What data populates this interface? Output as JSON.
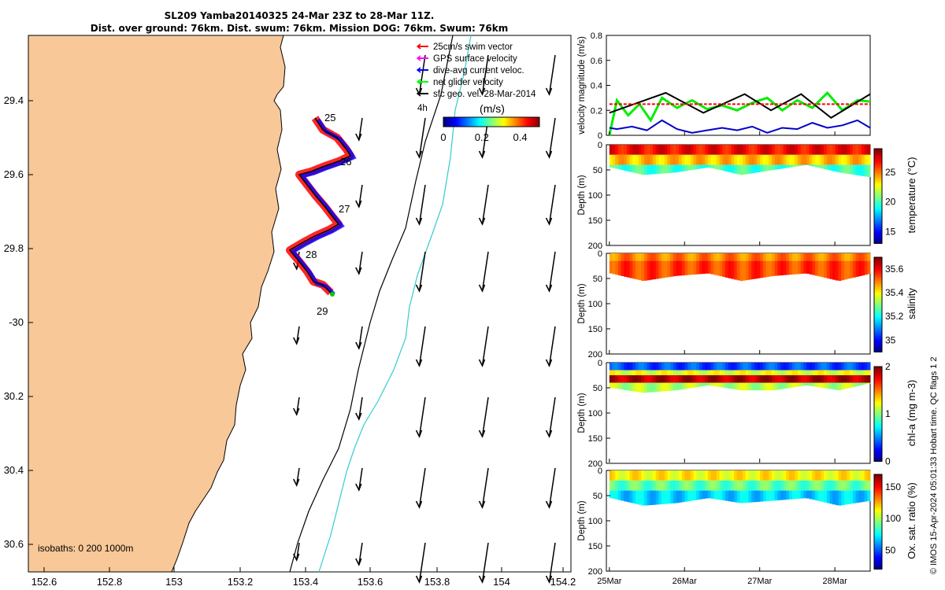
{
  "header": {
    "title_line1": "SL209 Yamba20140325 24-Mar 23Z to 28-Mar 11Z.",
    "title_line2": "Dist. over ground: 76km. Dist. swum: 76km. Mission DOG: 76km. Swum: 76km"
  },
  "map": {
    "lon_ticks": [
      "152.6",
      "152.8",
      "153",
      "153.2",
      "153.4",
      "153.6",
      "153.8",
      "154",
      "154.2"
    ],
    "lat_ticks": [
      "29.4",
      "29.6",
      "29.8",
      "-30",
      "30.2",
      "30.4",
      "30.6"
    ],
    "day_labels": [
      "25",
      "26",
      "27",
      "28",
      "29"
    ],
    "isobaths_label": "isobaths: 0   200  1000m",
    "legend": [
      {
        "label": "25cm/s swim vector",
        "color": "#ff0000"
      },
      {
        "label": "GPS surface velocity",
        "color": "#ff00ff"
      },
      {
        "label": "dive-avg current veloc.",
        "color": "#0000ff"
      },
      {
        "label": "net glider velocity",
        "color": "#00ff00"
      },
      {
        "label": "sfc geo. vel. 28-Mar-2014",
        "color": "#000000"
      }
    ],
    "ref_arrow_label": "4h",
    "colorbar": {
      "title": "(m/s)",
      "ticks": [
        "0",
        "0.2",
        "0.4"
      ],
      "range": [
        0,
        0.5
      ]
    },
    "land_color": "#f8c898"
  },
  "chart_data": [
    {
      "type": "line",
      "ylabel": "velocity magnitude (m/s)",
      "ylim": [
        0,
        0.8
      ],
      "yticks": [
        "0",
        "0.2",
        "0.4",
        "0.6",
        "0.8"
      ],
      "x_range_days": [
        24.96,
        28.47
      ],
      "series": [
        {
          "color": "#00ee00",
          "x": [
            25.0,
            25.1,
            25.25,
            25.4,
            25.55,
            25.7,
            25.9,
            26.1,
            26.3,
            26.5,
            26.7,
            26.9,
            27.1,
            27.3,
            27.5,
            27.7,
            27.9,
            28.1,
            28.3,
            28.47
          ],
          "values": [
            0.0,
            0.28,
            0.16,
            0.25,
            0.12,
            0.3,
            0.22,
            0.28,
            0.21,
            0.24,
            0.2,
            0.26,
            0.3,
            0.2,
            0.28,
            0.22,
            0.34,
            0.2,
            0.28,
            0.27
          ]
        },
        {
          "color": "#0000cc",
          "x": [
            25.0,
            25.1,
            25.3,
            25.5,
            25.7,
            25.9,
            26.1,
            26.3,
            26.5,
            26.7,
            26.9,
            27.1,
            27.3,
            27.5,
            27.7,
            27.9,
            28.1,
            28.3,
            28.47
          ],
          "values": [
            0.06,
            0.05,
            0.07,
            0.04,
            0.12,
            0.05,
            0.02,
            0.04,
            0.06,
            0.04,
            0.07,
            0.02,
            0.06,
            0.05,
            0.1,
            0.06,
            0.08,
            0.12,
            0.06
          ]
        },
        {
          "color": "#000000",
          "x": [
            25.0,
            25.75,
            26.25,
            26.8,
            27.15,
            27.55,
            27.95,
            28.47
          ],
          "values": [
            0.18,
            0.34,
            0.18,
            0.33,
            0.2,
            0.33,
            0.14,
            0.33
          ]
        },
        {
          "color": "#ff0000",
          "dashed": true,
          "x": [
            25.0,
            28.47
          ],
          "values": [
            0.25,
            0.25
          ]
        }
      ]
    },
    {
      "type": "heatmap",
      "ylabel": "Depth (m)",
      "colorbar_label": "temperature (°C)",
      "colorbar_ticks": [
        "15",
        "20",
        "25"
      ],
      "colorbar_range": [
        13,
        29
      ],
      "bottom_depth": [
        45,
        60,
        55,
        45,
        60,
        50,
        40,
        55,
        65
      ],
      "layers": [
        {
          "depth_from": 0,
          "depth_to": 20,
          "value": 27
        },
        {
          "depth_from": 20,
          "depth_to": 40,
          "value": 24
        },
        {
          "depth_from": 40,
          "depth_to": 70,
          "value": 20
        }
      ]
    },
    {
      "type": "heatmap",
      "ylabel": "Depth (m)",
      "colorbar_label": "salinity",
      "colorbar_ticks": [
        "35",
        "35.2",
        "35.4",
        "35.6"
      ],
      "colorbar_range": [
        34.9,
        35.7
      ],
      "bottom_depth": [
        40,
        55,
        45,
        40,
        55,
        45,
        40,
        55,
        40
      ],
      "layers": [
        {
          "depth_from": 0,
          "depth_to": 15,
          "value": 35.5
        },
        {
          "depth_from": 15,
          "depth_to": 60,
          "value": 35.55
        }
      ]
    },
    {
      "type": "heatmap",
      "ylabel": "Depth (m)",
      "colorbar_label": "chl-a (mg m-3)",
      "colorbar_ticks": [
        "0",
        "1",
        "2"
      ],
      "colorbar_range": [
        0,
        2
      ],
      "bottom_depth": [
        50,
        60,
        55,
        45,
        55,
        55,
        45,
        55,
        40
      ],
      "layers": [
        {
          "depth_from": 0,
          "depth_to": 15,
          "value": 0.4
        },
        {
          "depth_from": 15,
          "depth_to": 25,
          "value": 1.2
        },
        {
          "depth_from": 25,
          "depth_to": 40,
          "value": 1.9
        },
        {
          "depth_from": 40,
          "depth_to": 60,
          "value": 1.1
        }
      ]
    },
    {
      "type": "heatmap",
      "ylabel": "Depth (m)",
      "colorbar_label": "Ox. sat. ratio (%)",
      "colorbar_ticks": [
        "50",
        "100",
        "150"
      ],
      "colorbar_range": [
        20,
        170
      ],
      "bottom_depth": [
        55,
        70,
        65,
        55,
        65,
        60,
        55,
        70,
        60
      ],
      "layers": [
        {
          "depth_from": 0,
          "depth_to": 20,
          "value": 115
        },
        {
          "depth_from": 20,
          "depth_to": 40,
          "value": 90
        },
        {
          "depth_from": 40,
          "depth_to": 70,
          "value": 70
        }
      ]
    }
  ],
  "time_axis": {
    "ticks": [
      "25Mar",
      "26Mar",
      "27Mar",
      "28Mar"
    ],
    "tick_days": [
      25,
      26,
      27,
      28
    ]
  },
  "depth_ticks": [
    "0",
    "50",
    "100",
    "150",
    "200"
  ],
  "footer_note": "© IMOS 15-Apr-2024 05:01:33 Hobart time. QC flags 1  2"
}
